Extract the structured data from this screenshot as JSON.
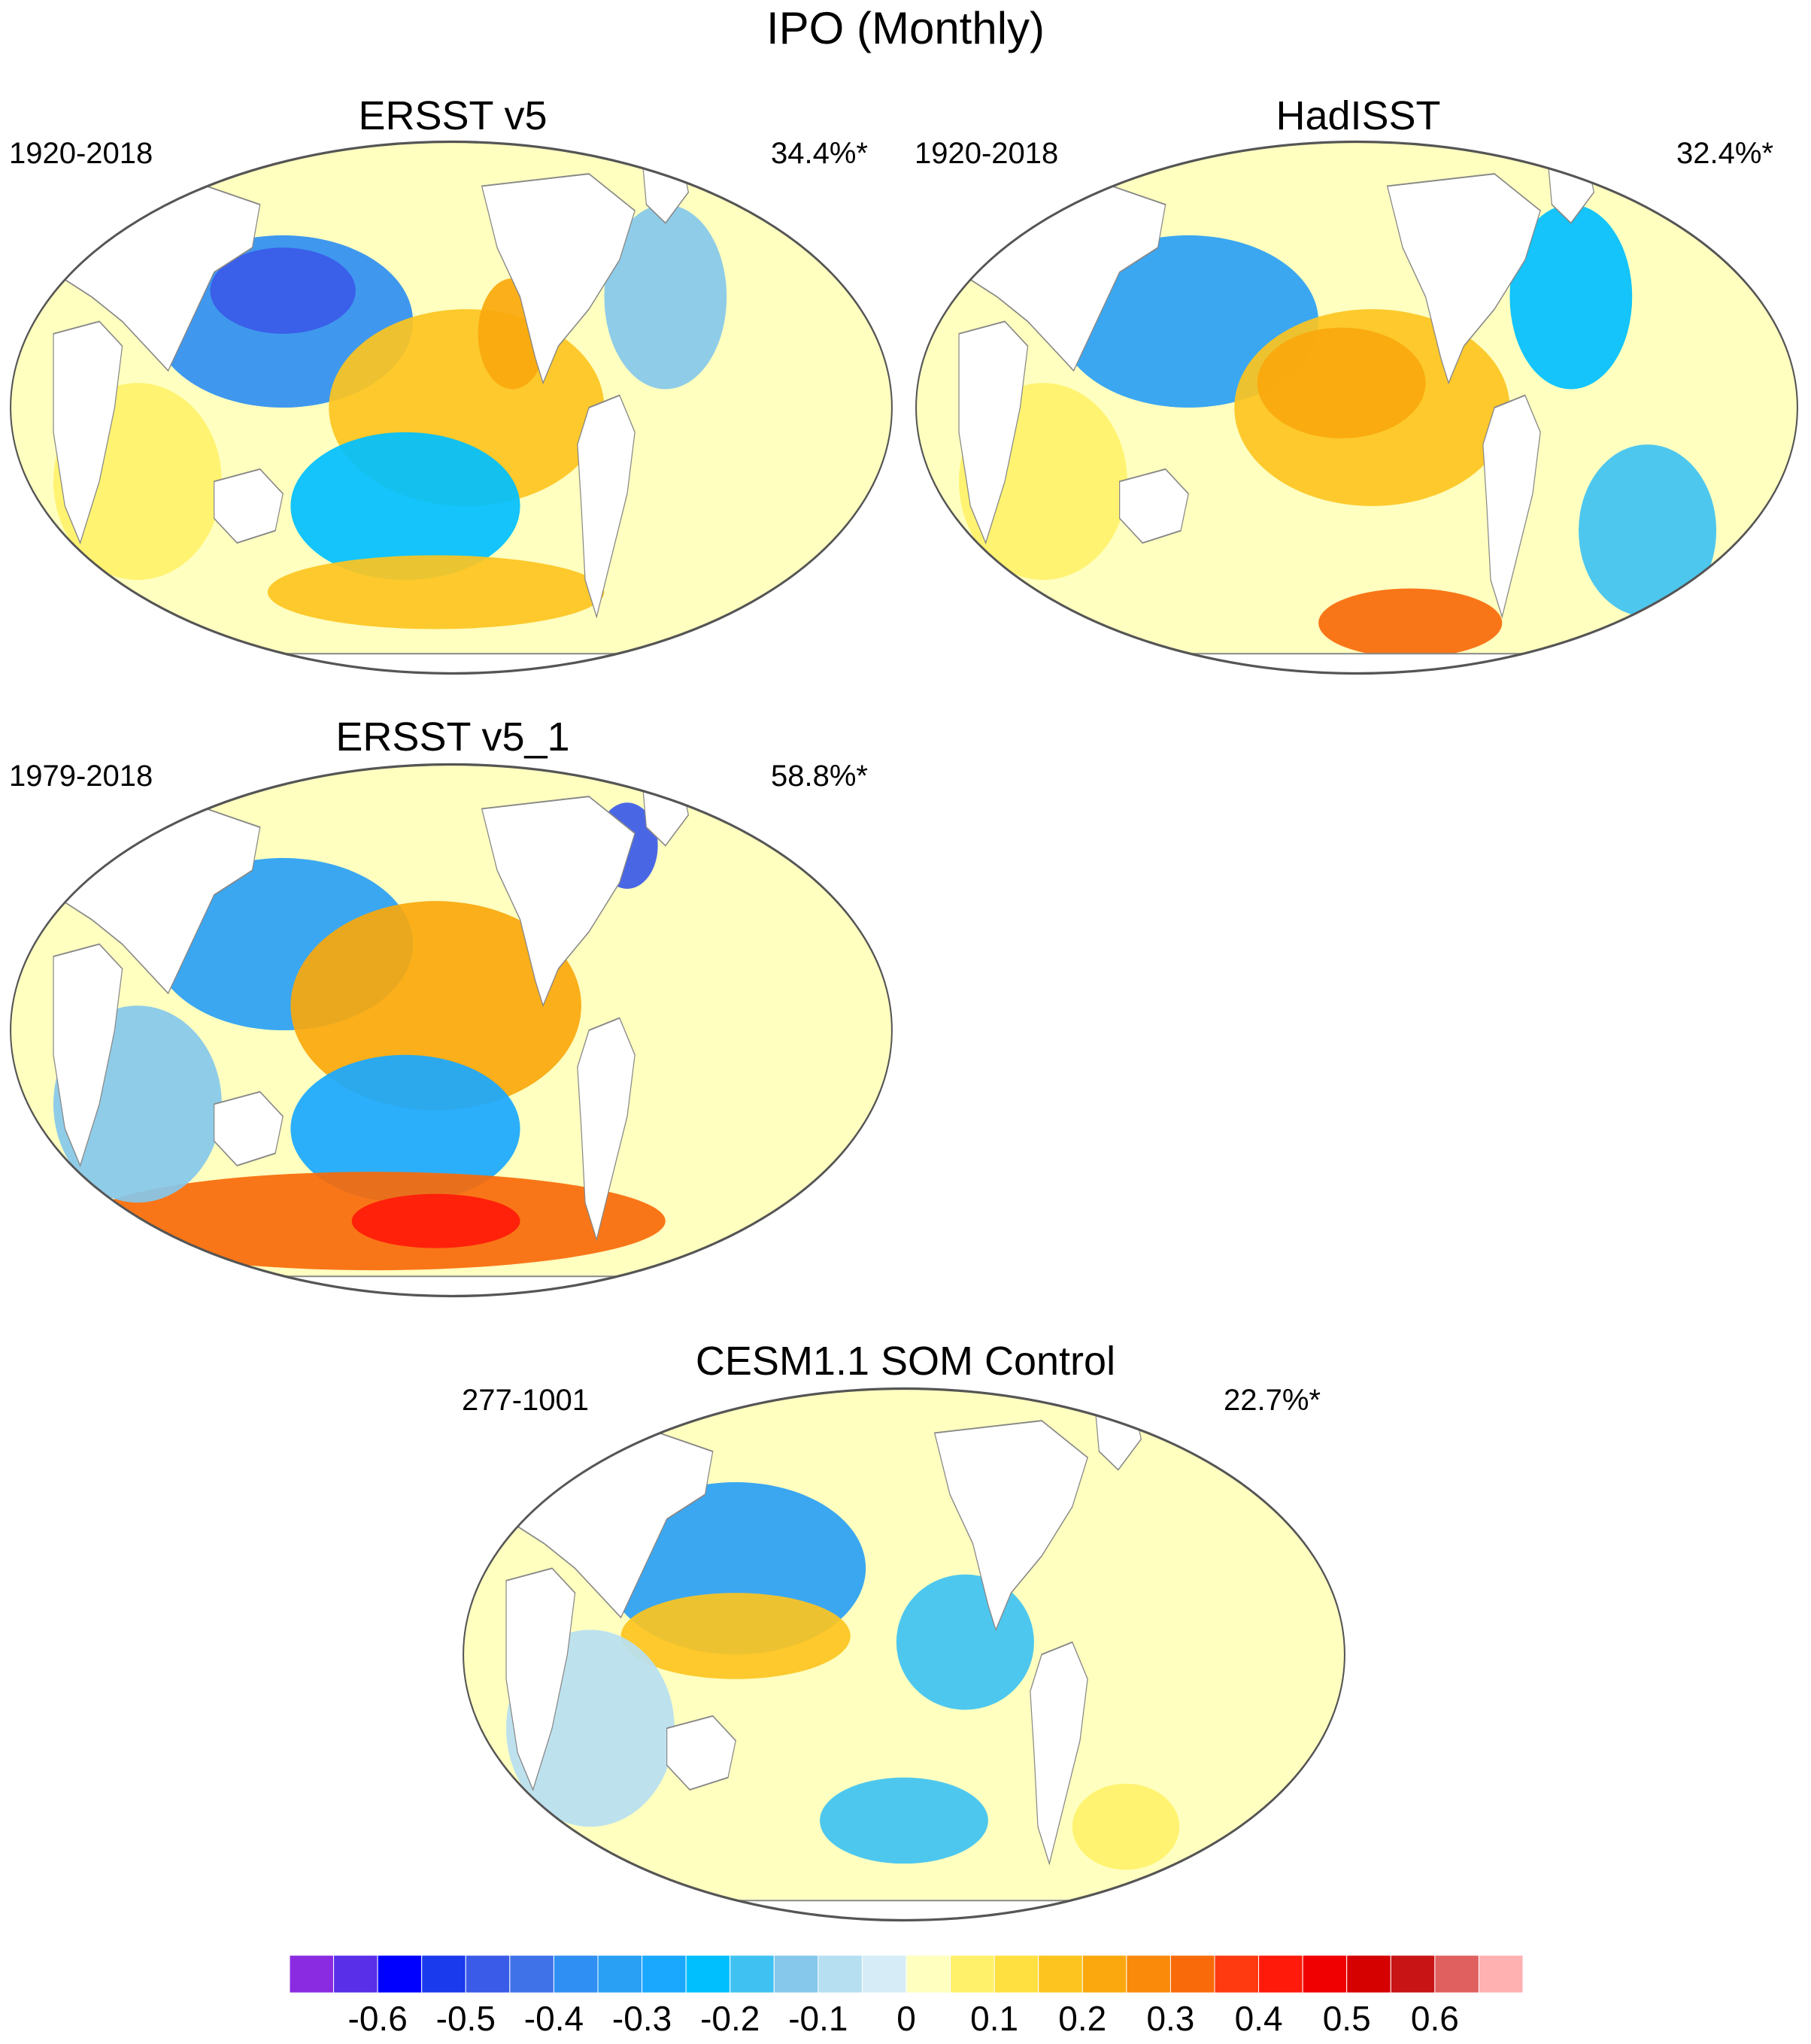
{
  "figure": {
    "title": "IPO (Monthly)"
  },
  "palette": {
    "ocean_background": "#ffffc0",
    "land": "#ffffff",
    "coast_stroke": "#888888",
    "frame_stroke": "#555555"
  },
  "panels": [
    {
      "id": "ersst-v5",
      "title": "ERSST v5",
      "period": "1920-2018",
      "variance_pct": "34.4%*",
      "patterns": [
        {
          "region": "north-pacific",
          "value": -0.35
        },
        {
          "region": "north-pacific-core",
          "value": -0.45
        },
        {
          "region": "east-tropical-pacific",
          "value": 0.15
        },
        {
          "region": "northeast-pacific-coast",
          "value": 0.25
        },
        {
          "region": "southwest-pacific",
          "value": -0.2
        },
        {
          "region": "south-pacific-band",
          "value": 0.15
        },
        {
          "region": "north-atlantic",
          "value": -0.1
        },
        {
          "region": "indian-ocean",
          "value": 0.05
        }
      ]
    },
    {
      "id": "hadisst",
      "title": "HadISST",
      "period": "1920-2018",
      "variance_pct": "32.4%*",
      "patterns": [
        {
          "region": "north-pacific",
          "value": -0.3
        },
        {
          "region": "east-tropical-pacific",
          "value": 0.2
        },
        {
          "region": "central-pacific-core",
          "value": 0.25
        },
        {
          "region": "southern-ocean-pacific",
          "value": 0.3
        },
        {
          "region": "south-atlantic",
          "value": -0.15
        },
        {
          "region": "north-atlantic",
          "value": -0.2
        },
        {
          "region": "indian-ocean",
          "value": 0.1
        }
      ]
    },
    {
      "id": "ersst-v5-1",
      "title": "ERSST v5_1",
      "period": "1979-2018",
      "variance_pct": "58.8%*",
      "patterns": [
        {
          "region": "north-pacific",
          "value": -0.3
        },
        {
          "region": "tropical-pacific-wedge",
          "value": 0.25
        },
        {
          "region": "southwest-pacific",
          "value": -0.25
        },
        {
          "region": "southern-ocean-band",
          "value": 0.3
        },
        {
          "region": "southern-ocean-core",
          "value": 0.4
        },
        {
          "region": "labrador-sea",
          "value": -0.45
        },
        {
          "region": "indian-ocean",
          "value": -0.1
        }
      ]
    },
    {
      "id": "cesm11-som-control",
      "title": "CESM1.1 SOM Control",
      "period": "277-1001",
      "variance_pct": "22.7%*",
      "patterns": [
        {
          "region": "north-pacific",
          "value": -0.3
        },
        {
          "region": "northwest-pacific-tongue",
          "value": 0.15
        },
        {
          "region": "east-pacific-cool",
          "value": -0.15
        },
        {
          "region": "south-pacific-cool",
          "value": -0.15
        },
        {
          "region": "south-atlantic-warm",
          "value": 0.1
        },
        {
          "region": "indian-ocean",
          "value": -0.05
        }
      ]
    }
  ],
  "colorbar": {
    "colors": [
      "#8a2be2",
      "#5a2fe8",
      "#0000ff",
      "#1a3aee",
      "#3a5ae8",
      "#3f72e8",
      "#2f8ff2",
      "#2aa0f5",
      "#1aa8ff",
      "#00bfff",
      "#3fc2f2",
      "#85c8eb",
      "#b7dff2",
      "#d6ecf6",
      "#ffffc0",
      "#fff26a",
      "#ffe040",
      "#fdc41f",
      "#faa80d",
      "#f98a0a",
      "#f96a0a",
      "#ff3a10",
      "#ff1a0a",
      "#f00000",
      "#d50000",
      "#c81414",
      "#e06060",
      "#ffb0b0"
    ],
    "bin_edges_label": [
      "-0.6",
      "-0.5",
      "-0.4",
      "-0.3",
      "-0.2",
      "-0.1",
      "0",
      "0.1",
      "0.2",
      "0.3",
      "0.4",
      "0.5",
      "0.6"
    ],
    "tick_values": [
      -0.6,
      -0.5,
      -0.4,
      -0.3,
      -0.2,
      -0.1,
      0,
      0.1,
      0.2,
      0.3,
      0.4,
      0.5,
      0.6
    ]
  }
}
